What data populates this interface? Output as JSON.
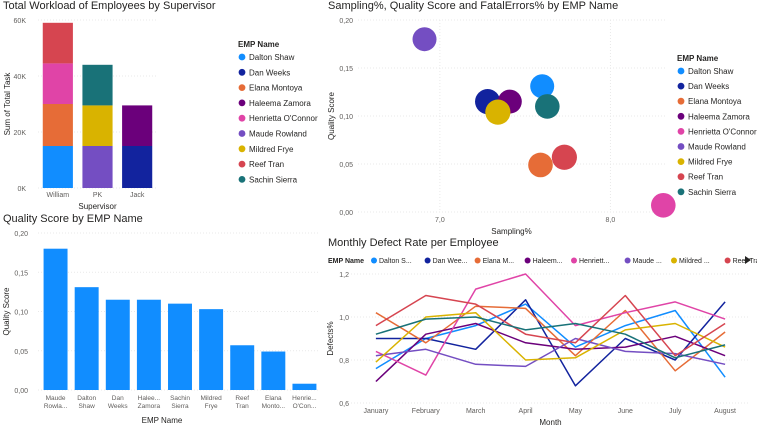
{
  "charts": {
    "workload": {
      "title": "Total Workload of Employees by Supervisor",
      "ylabel": "Sum of Total Task",
      "xlabel": "Supervisor",
      "legend_title": "EMP Name"
    },
    "scatter": {
      "title": "Sampling%, Quality Score and FatalErrors% by EMP Name",
      "ylabel": "Quality Score",
      "xlabel": "Sampling%",
      "legend_title": "EMP Name"
    },
    "quality": {
      "title": "Quality Score by EMP Name",
      "ylabel": "Quality Score",
      "xlabel": "EMP Name"
    },
    "defect": {
      "title": "Monthly Defect Rate per Employee",
      "ylabel": "Defects%",
      "xlabel": "Month",
      "legend_title": "EMP Name",
      "legend_labels": [
        "Dalton S...",
        "Dan Wee...",
        "Elana M...",
        "Haleem...",
        "Henriett...",
        "Maude ...",
        "Mildred ...",
        "Reef Tran"
      ],
      "more_icon": "play-triangle-icon"
    }
  },
  "chart_data": [
    {
      "type": "bar",
      "stacked": true,
      "title": "Total Workload of Employees by Supervisor",
      "xlabel": "Supervisor",
      "ylabel": "Sum of Total Task",
      "categories": [
        "William",
        "PK",
        "Jack"
      ],
      "yticks": [
        "0K",
        "20K",
        "40K",
        "60K"
      ],
      "ylim": [
        0,
        60000
      ],
      "legend": "right",
      "series": [
        {
          "name": "Dalton Shaw",
          "color": "#118DFF",
          "values": [
            15000,
            0,
            0
          ]
        },
        {
          "name": "Dan Weeks",
          "color": "#12239E",
          "values": [
            0,
            0,
            15000
          ]
        },
        {
          "name": "Elana Montoya",
          "color": "#E66C37",
          "values": [
            15000,
            0,
            0
          ]
        },
        {
          "name": "Haleema Zamora",
          "color": "#6B007B",
          "values": [
            0,
            0,
            14500
          ]
        },
        {
          "name": "Henrietta O'Connor",
          "color": "#E044A7",
          "values": [
            14500,
            0,
            0
          ]
        },
        {
          "name": "Maude Rowland",
          "color": "#744EC2",
          "values": [
            0,
            15000,
            0
          ]
        },
        {
          "name": "Mildred Frye",
          "color": "#D9B300",
          "values": [
            0,
            14500,
            0
          ]
        },
        {
          "name": "Reef Tran",
          "color": "#D64550",
          "values": [
            14500,
            0,
            0
          ]
        },
        {
          "name": "Sachin Sierra",
          "color": "#197278",
          "values": [
            0,
            14500,
            0
          ]
        }
      ]
    },
    {
      "type": "scatter",
      "title": "Sampling%, Quality Score and FatalErrors% by EMP Name",
      "xlabel": "Sampling%",
      "ylabel": "Quality Score",
      "xlim": [
        6.52,
        8.32
      ],
      "ylim": [
        0,
        0.2
      ],
      "xticks": [
        "7,0",
        "8,0"
      ],
      "yticks": [
        "0,00",
        "0,05",
        "0,10",
        "0,15",
        "0,20"
      ],
      "legend": "right",
      "points": [
        {
          "name": "Dalton Shaw",
          "x": 7.6,
          "y": 0.131,
          "size": 0.5,
          "color": "#118DFF"
        },
        {
          "name": "Dan Weeks",
          "x": 7.28,
          "y": 0.115,
          "size": 0.6,
          "color": "#12239E"
        },
        {
          "name": "Elana Montoya",
          "x": 7.59,
          "y": 0.049,
          "size": 0.55,
          "color": "#E66C37"
        },
        {
          "name": "Haleema Zamora",
          "x": 7.41,
          "y": 0.115,
          "size": 0.5,
          "color": "#6B007B"
        },
        {
          "name": "Henrietta O'Connor",
          "x": 8.31,
          "y": 0.007,
          "size": 0.55,
          "color": "#E044A7"
        },
        {
          "name": "Maude Rowland",
          "x": 6.91,
          "y": 0.18,
          "size": 0.5,
          "color": "#744EC2"
        },
        {
          "name": "Mildred Frye",
          "x": 7.34,
          "y": 0.104,
          "size": 0.6,
          "color": "#D9B300"
        },
        {
          "name": "Reef Tran",
          "x": 7.73,
          "y": 0.057,
          "size": 0.6,
          "color": "#D64550"
        },
        {
          "name": "Sachin Sierra",
          "x": 7.63,
          "y": 0.11,
          "size": 0.55,
          "color": "#197278"
        }
      ]
    },
    {
      "type": "bar",
      "title": "Quality Score by EMP Name",
      "xlabel": "EMP Name",
      "ylabel": "Quality Score",
      "ylim": [
        0,
        0.2
      ],
      "yticks": [
        "0,00",
        "0,05",
        "0,10",
        "0,15",
        "0,20"
      ],
      "color": "#118DFF",
      "categories": [
        [
          "Maude",
          "Rowla..."
        ],
        [
          "Dalton",
          "Shaw"
        ],
        [
          "Dan",
          "Weeks"
        ],
        [
          "Halee...",
          "Zamora"
        ],
        [
          "Sachin",
          "Sierra"
        ],
        [
          "Mildred",
          "Frye"
        ],
        [
          "Reef",
          "Tran"
        ],
        [
          "Elana",
          "Monto..."
        ],
        [
          "Henrie...",
          "O'Con..."
        ]
      ],
      "values": [
        0.18,
        0.131,
        0.115,
        0.115,
        0.11,
        0.103,
        0.057,
        0.049,
        0.008
      ]
    },
    {
      "type": "line",
      "title": "Monthly Defect Rate per Employee",
      "xlabel": "Month",
      "ylabel": "Defects%",
      "ylim": [
        0.6,
        1.2
      ],
      "yticks": [
        "0,6",
        "0,8",
        "1,0",
        "1,2"
      ],
      "categories": [
        "January",
        "February",
        "March",
        "April",
        "May",
        "June",
        "July",
        "August"
      ],
      "legend": "top",
      "series": [
        {
          "name": "Dalton Shaw",
          "color": "#118DFF",
          "values": [
            0.76,
            0.9,
            0.96,
            1.06,
            0.86,
            0.96,
            1.03,
            0.72
          ]
        },
        {
          "name": "Dan Weeks",
          "color": "#12239E",
          "values": [
            0.9,
            0.9,
            0.85,
            1.08,
            0.68,
            0.9,
            0.8,
            1.07
          ]
        },
        {
          "name": "Elana Montoya",
          "color": "#E66C37",
          "values": [
            1.02,
            0.88,
            1.05,
            1.04,
            0.82,
            1.03,
            0.75,
            0.93
          ]
        },
        {
          "name": "Haleema Zamora",
          "color": "#6B007B",
          "values": [
            0.7,
            0.92,
            0.97,
            0.88,
            0.85,
            0.86,
            0.91,
            0.82
          ]
        },
        {
          "name": "Henrietta O'Connor",
          "color": "#E044A7",
          "values": [
            0.84,
            0.73,
            1.13,
            1.2,
            0.96,
            1.02,
            1.07,
            0.99
          ]
        },
        {
          "name": "Maude Rowland",
          "color": "#744EC2",
          "values": [
            0.82,
            0.85,
            0.78,
            0.77,
            0.9,
            0.84,
            0.83,
            0.78
          ]
        },
        {
          "name": "Mildred Frye",
          "color": "#D9B300",
          "values": [
            0.79,
            1.0,
            1.02,
            0.8,
            0.81,
            0.94,
            0.97,
            0.86
          ]
        },
        {
          "name": "Reef Tran",
          "color": "#D64550",
          "values": [
            0.96,
            1.1,
            1.06,
            0.92,
            0.88,
            1.1,
            0.82,
            0.97
          ]
        },
        {
          "name": "Sachin Sierra",
          "color": "#197278",
          "values": [
            0.92,
            0.99,
            1.0,
            0.94,
            0.97,
            0.92,
            0.81,
            0.87
          ]
        }
      ]
    }
  ]
}
